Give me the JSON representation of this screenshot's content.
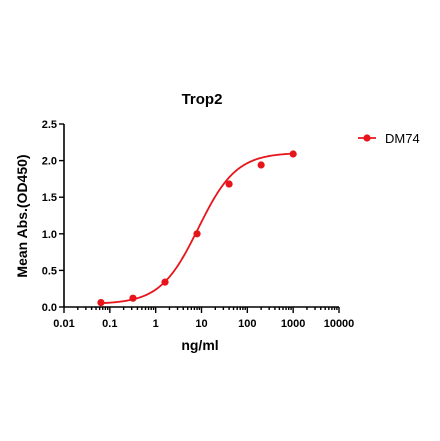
{
  "chart_data": {
    "type": "line",
    "title": "Trop2",
    "xlabel": "ng/ml",
    "ylabel": "Mean Abs.(OD450)",
    "x_scale": "log",
    "xlim": [
      0.01,
      10000
    ],
    "ylim": [
      0.0,
      2.5
    ],
    "x_ticks": [
      "0.01",
      "0.1",
      "1",
      "10",
      "100",
      "1000",
      "10000"
    ],
    "y_ticks": [
      "0.0",
      "0.5",
      "1.0",
      "1.5",
      "2.0",
      "2.5"
    ],
    "grid": false,
    "legend_position": "top-right",
    "series": [
      {
        "name": "DM74",
        "color": "#e8141b",
        "x": [
          0.064,
          0.32,
          1.6,
          8,
          40,
          200,
          1000
        ],
        "y": [
          0.06,
          0.12,
          0.34,
          1.0,
          1.68,
          1.94,
          2.09
        ]
      }
    ]
  }
}
